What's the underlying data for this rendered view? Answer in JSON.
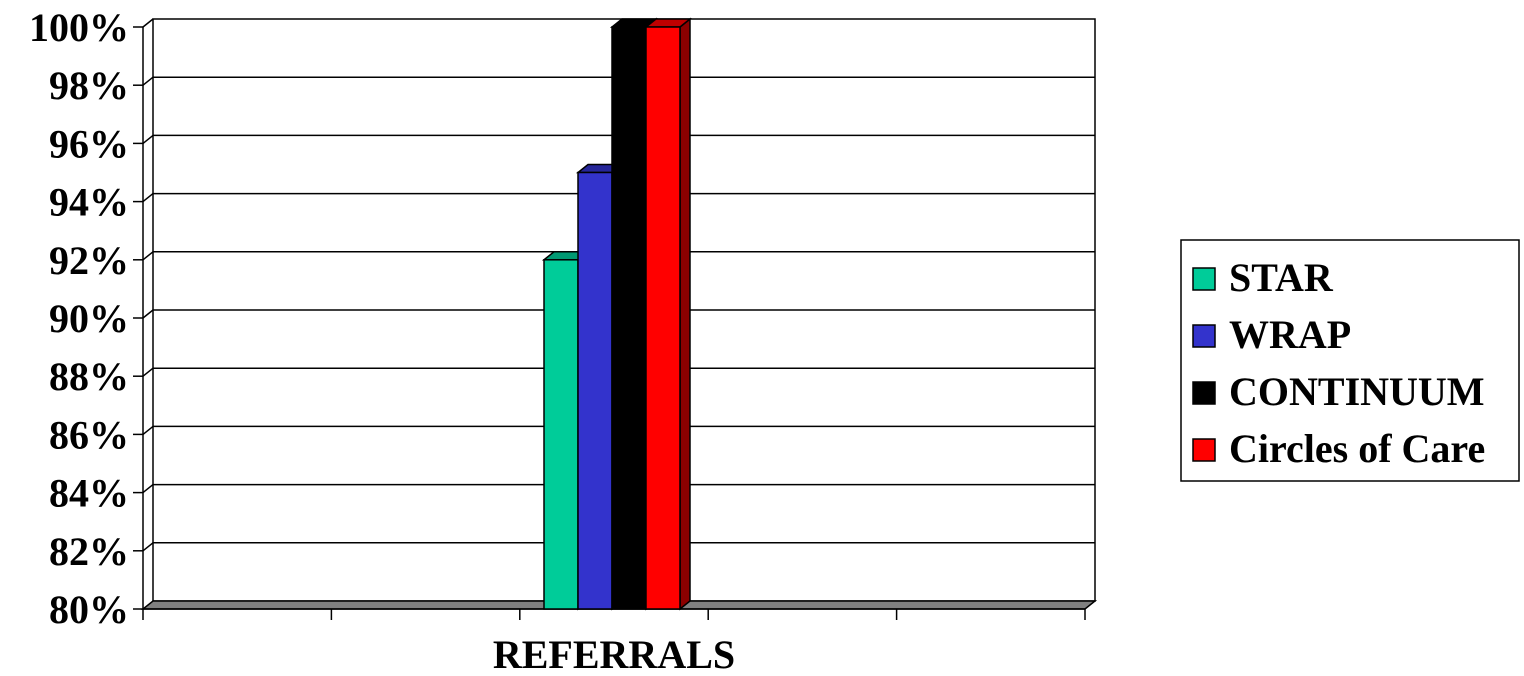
{
  "chart_data": {
    "type": "bar",
    "categories": [
      "REFERRALS"
    ],
    "series": [
      {
        "name": "STAR",
        "values": [
          92
        ],
        "color": "#00CC99"
      },
      {
        "name": "WRAP",
        "values": [
          95
        ],
        "color": "#3333CC"
      },
      {
        "name": "CONTINUUM",
        "values": [
          100
        ],
        "color": "#000000"
      },
      {
        "name": "Circles of Care",
        "values": [
          100
        ],
        "color": "#FF0000"
      }
    ],
    "ylim": [
      80,
      100
    ],
    "yticks": [
      "80%",
      "82%",
      "84%",
      "86%",
      "88%",
      "90%",
      "92%",
      "94%",
      "96%",
      "98%",
      "100%"
    ],
    "xlabel": "",
    "ylabel": "",
    "grid": true,
    "legend_position": "right"
  }
}
